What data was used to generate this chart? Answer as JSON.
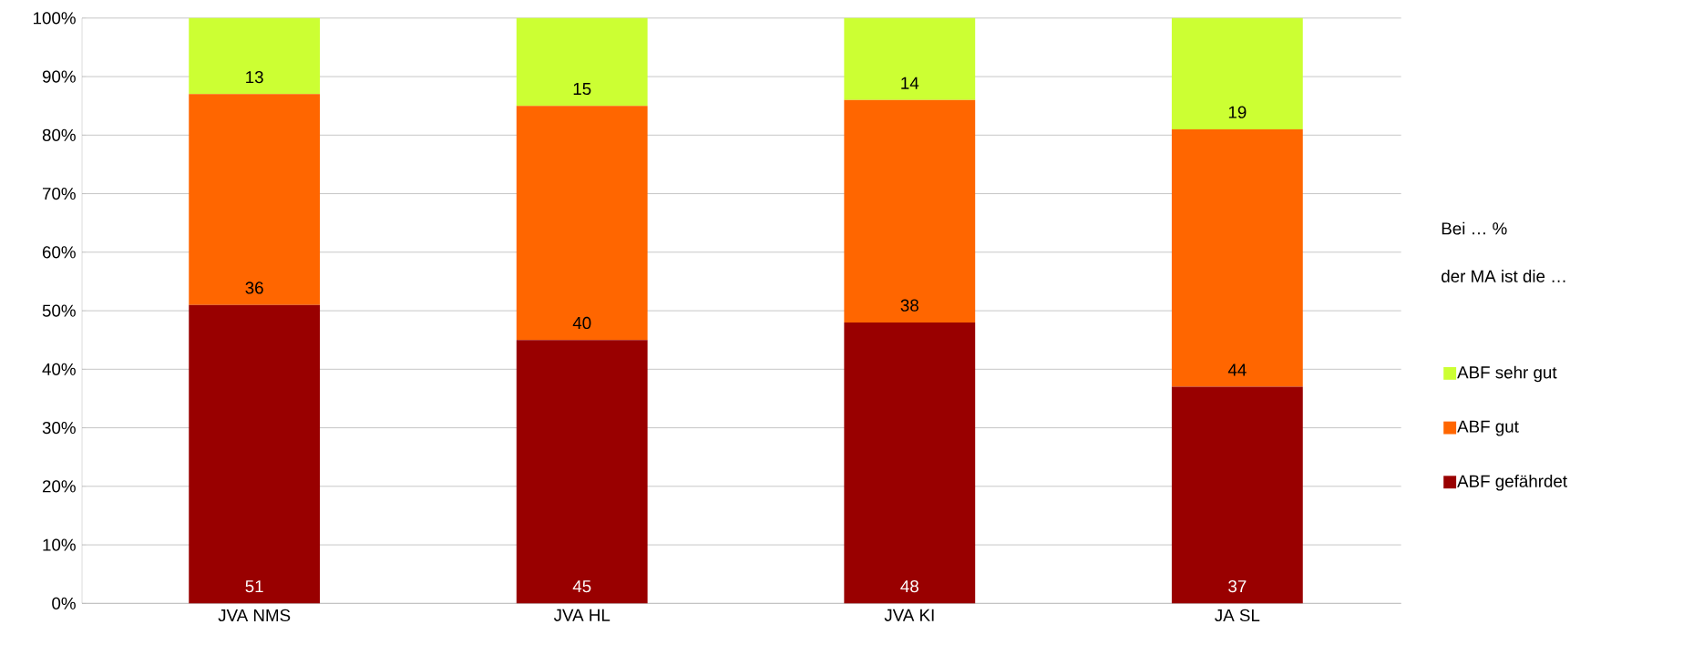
{
  "chart_data": {
    "type": "bar",
    "stacked": true,
    "categories": [
      "JVA NMS",
      "JVA HL",
      "JVA KI",
      "JA SL"
    ],
    "series": [
      {
        "name": "ABF gefährdet",
        "color": "#990000",
        "values": [
          51,
          45,
          48,
          37
        ],
        "value_labels": [
          "51",
          "45",
          "48",
          "37"
        ]
      },
      {
        "name": "ABF gut",
        "color": "#ff6600",
        "values": [
          36,
          40,
          38,
          44
        ],
        "value_labels": [
          "36",
          "40",
          "38",
          "44"
        ]
      },
      {
        "name": "ABF sehr gut",
        "color": "#ccff33",
        "values": [
          13,
          15,
          14,
          19
        ],
        "value_labels": [
          "13",
          "15",
          "14",
          "19"
        ]
      }
    ],
    "ylim": [
      0,
      100
    ],
    "yticks": [
      {
        "value": 0,
        "label": "0%"
      },
      {
        "value": 10,
        "label": "10%"
      },
      {
        "value": 20,
        "label": "20%"
      },
      {
        "value": 30,
        "label": "30%"
      },
      {
        "value": 40,
        "label": "40%"
      },
      {
        "value": 50,
        "label": "50%"
      },
      {
        "value": 60,
        "label": "60%"
      },
      {
        "value": 70,
        "label": "70%"
      },
      {
        "value": 80,
        "label": "80%"
      },
      {
        "value": 90,
        "label": "90%"
      },
      {
        "value": 100,
        "label": "100%"
      }
    ],
    "grid": "y",
    "legend": "right",
    "legend_title": "Bei … %\nder MA ist die …"
  }
}
